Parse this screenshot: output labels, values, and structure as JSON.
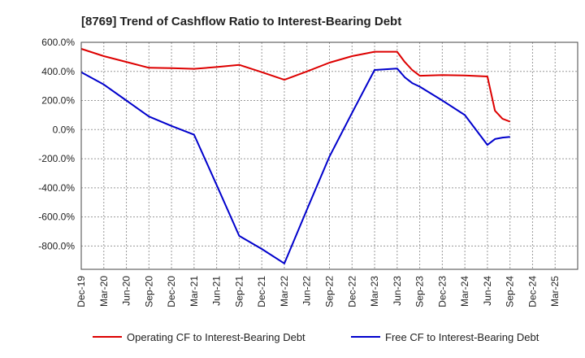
{
  "chart_data": {
    "type": "line",
    "title": "[8769]  Trend of Cashflow Ratio to Interest-Bearing Debt",
    "xlabel": "",
    "ylabel": "",
    "y_unit": "%",
    "ylim": [
      -960,
      600
    ],
    "y_ticks": [
      -800,
      -600,
      -400,
      -200,
      0,
      200,
      400,
      600
    ],
    "y_tick_labels": [
      "-800.0%",
      "-600.0%",
      "-400.0%",
      "-200.0%",
      "0.0%",
      "200.0%",
      "400.0%",
      "600.0%"
    ],
    "x_tick_labels": [
      "Dec-19",
      "Mar-20",
      "Jun-20",
      "Sep-20",
      "Dec-20",
      "Mar-21",
      "Jun-21",
      "Sep-21",
      "Dec-21",
      "Mar-22",
      "Jun-22",
      "Sep-22",
      "Dec-22",
      "Mar-23",
      "Jun-23",
      "Sep-23",
      "Dec-23",
      "Mar-24",
      "Jun-24",
      "Sep-24",
      "Dec-24",
      "Mar-25"
    ],
    "grid": true,
    "legend_position": "bottom",
    "series": [
      {
        "name": "Operating CF to Interest-Bearing Debt",
        "color": "#dd0000",
        "points": [
          [
            "Dec-19",
            555
          ],
          [
            "Mar-20",
            505
          ],
          [
            "Jun-20",
            465
          ],
          [
            "Sep-20",
            425
          ],
          [
            "Dec-20",
            422
          ],
          [
            "Mar-21",
            418
          ],
          [
            "Jun-21",
            430
          ],
          [
            "Sep-21",
            445
          ],
          [
            "Dec-21",
            395
          ],
          [
            "Mar-22",
            342
          ],
          [
            "Jun-22",
            400
          ],
          [
            "Sep-22",
            460
          ],
          [
            "Dec-22",
            505
          ],
          [
            "Mar-23",
            535
          ],
          [
            "Jun-23",
            535
          ],
          [
            "Jul-23",
            465
          ],
          [
            "Aug-23",
            410
          ],
          [
            "Sep-23",
            370
          ],
          [
            "Dec-23",
            375
          ],
          [
            "Mar-24",
            372
          ],
          [
            "Jun-24",
            365
          ],
          [
            "Jul-24",
            130
          ],
          [
            "Aug-24",
            75
          ],
          [
            "Sep-24",
            55
          ]
        ]
      },
      {
        "name": "Free CF to Interest-Bearing Debt",
        "color": "#0000cc",
        "points": [
          [
            "Dec-19",
            395
          ],
          [
            "Mar-20",
            310
          ],
          [
            "Jun-20",
            200
          ],
          [
            "Sep-20",
            90
          ],
          [
            "Dec-20",
            25
          ],
          [
            "Mar-21",
            -35
          ],
          [
            "Jun-21",
            -380
          ],
          [
            "Sep-21",
            -730
          ],
          [
            "Dec-21",
            -820
          ],
          [
            "Mar-22",
            -920
          ],
          [
            "Jun-22",
            -550
          ],
          [
            "Sep-22",
            -185
          ],
          [
            "Dec-22",
            115
          ],
          [
            "Mar-23",
            410
          ],
          [
            "Jun-23",
            420
          ],
          [
            "Jul-23",
            360
          ],
          [
            "Aug-23",
            320
          ],
          [
            "Sep-23",
            295
          ],
          [
            "Dec-23",
            200
          ],
          [
            "Mar-24",
            100
          ],
          [
            "Jun-24",
            -105
          ],
          [
            "Jul-24",
            -65
          ],
          [
            "Aug-24",
            -55
          ],
          [
            "Sep-24",
            -50
          ]
        ]
      }
    ]
  }
}
